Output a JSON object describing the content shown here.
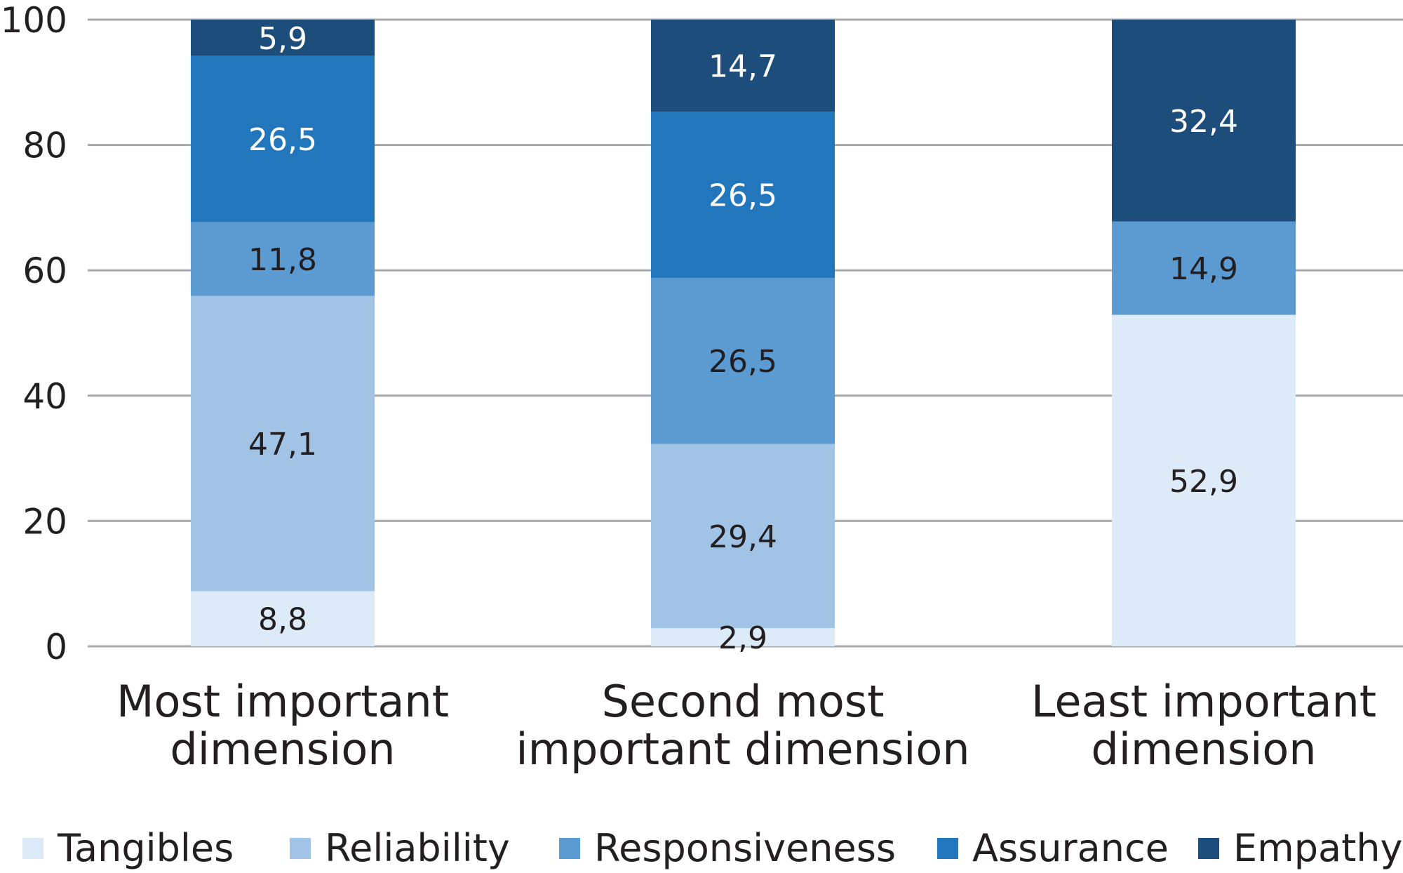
{
  "chart_data": {
    "type": "bar",
    "stacked": true,
    "categories": [
      [
        "Most important",
        "dimension"
      ],
      [
        "Second most",
        "important dimension"
      ],
      [
        "Least important",
        "dimension"
      ]
    ],
    "series": [
      {
        "name": "Tangibles",
        "color": "#ddeaf7",
        "label_color": "#231f20",
        "values": [
          8.8,
          2.9,
          52.9
        ],
        "labels": [
          "8,8",
          "2,9",
          "52,9"
        ]
      },
      {
        "name": "Reliability",
        "color": "#a1c3e6",
        "label_color": "#231f20",
        "values": [
          47.1,
          29.4,
          0
        ],
        "labels": [
          "47,1",
          "29,4",
          ""
        ]
      },
      {
        "name": "Responsiveness",
        "color": "#5b9bd2",
        "label_color": "#231f20",
        "values": [
          11.8,
          26.5,
          14.9
        ],
        "labels": [
          "11,8",
          "26,5",
          "14,9"
        ]
      },
      {
        "name": "Assurance",
        "color": "#2276bb",
        "label_color": "#ffffff",
        "values": [
          26.5,
          26.5,
          0
        ],
        "labels": [
          "26,5",
          "26,5",
          ""
        ]
      },
      {
        "name": "Empathy",
        "color": "#1c4d7b",
        "label_color": "#ffffff",
        "values": [
          5.9,
          14.7,
          32.4
        ],
        "labels": [
          "5,9",
          "14,7",
          "32,4"
        ]
      }
    ],
    "ylim": [
      0,
      100
    ],
    "yticks": [
      0,
      20,
      40,
      60,
      80,
      100
    ],
    "grid": true,
    "legend_position": "bottom",
    "title": "",
    "xlabel": "",
    "ylabel": ""
  }
}
